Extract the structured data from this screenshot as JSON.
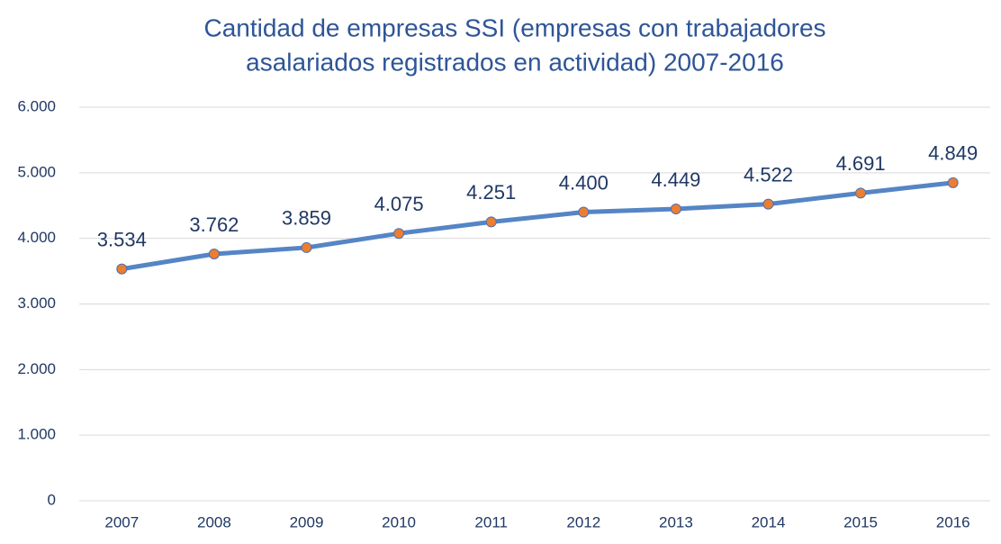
{
  "chart_data": {
    "type": "line",
    "title": [
      "Cantidad de empresas SSI (empresas con trabajadores",
      "asalariados registrados en actividad) 2007-2016"
    ],
    "categories": [
      "2007",
      "2008",
      "2009",
      "2010",
      "2011",
      "2012",
      "2013",
      "2014",
      "2015",
      "2016"
    ],
    "values": [
      3534,
      3762,
      3859,
      4075,
      4251,
      4400,
      4449,
      4522,
      4691,
      4849
    ],
    "value_labels": [
      "3.534",
      "3.762",
      "3.859",
      "4.075",
      "4.251",
      "4.400",
      "4.449",
      "4.522",
      "4.691",
      "4.849"
    ],
    "color": "#5585c5",
    "marker_color": "#ed7d31",
    "ylim": [
      0,
      6000
    ],
    "yticks": [
      0,
      {
        "value": 1000,
        "label": "1.000"
      },
      {
        "value": 2000,
        "label": "2.000"
      },
      {
        "value": 3000,
        "label": "3.000"
      },
      {
        "value": 4000,
        "label": "4.000"
      },
      {
        "value": 5000,
        "label": "5.000"
      },
      {
        "value": 6000,
        "label": "6.000"
      }
    ],
    "grid": true
  }
}
